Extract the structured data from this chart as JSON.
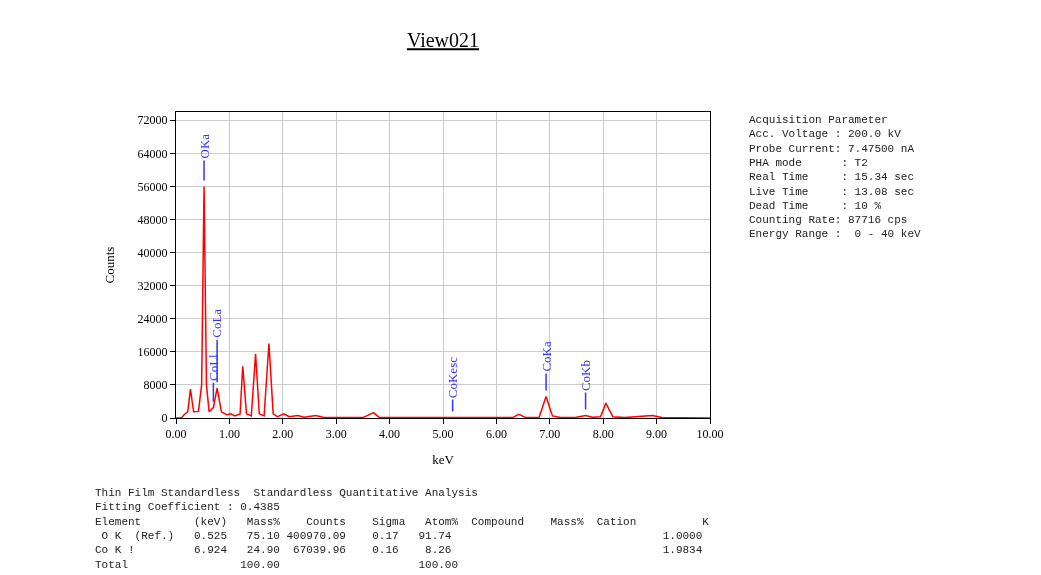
{
  "chart_data": {
    "type": "line",
    "title": "View021",
    "xlabel": "keV",
    "ylabel": "Counts",
    "x": [
      0,
      0.1,
      0.15,
      0.22,
      0.27,
      0.33,
      0.42,
      0.48,
      0.525,
      0.57,
      0.62,
      0.7,
      0.77,
      0.85,
      0.95,
      1.03,
      1.1,
      1.2,
      1.25,
      1.32,
      1.41,
      1.49,
      1.56,
      1.65,
      1.74,
      1.82,
      1.9,
      2.02,
      2.12,
      2.28,
      2.4,
      2.62,
      2.75,
      3.5,
      3.7,
      3.8,
      4.5,
      5.18,
      5.5,
      6.3,
      6.42,
      6.55,
      6.8,
      6.93,
      7.05,
      7.2,
      7.5,
      7.67,
      7.8,
      7.95,
      8.05,
      8.18,
      8.4,
      8.92,
      9.1,
      10
    ],
    "series": [
      {
        "color": "#ff0000",
        "values": [
          0,
          0,
          800,
          1500,
          7000,
          1500,
          1600,
          8000,
          56000,
          8000,
          1500,
          2500,
          7200,
          1500,
          800,
          1000,
          500,
          1000,
          12500,
          1000,
          500,
          15500,
          1000,
          500,
          18000,
          1000,
          300,
          1000,
          300,
          600,
          200,
          600,
          200,
          100,
          1300,
          200,
          100,
          100,
          100,
          100,
          900,
          100,
          200,
          5200,
          500,
          100,
          200,
          600,
          200,
          300,
          3600,
          300,
          100,
          600,
          100,
          0
        ]
      }
    ],
    "xlim": [
      0,
      10
    ],
    "ylim": [
      0,
      74000
    ],
    "xticks": [
      {
        "value": 0,
        "label": "0.00"
      },
      {
        "value": 1,
        "label": "1.00"
      },
      {
        "value": 2,
        "label": "2.00"
      },
      {
        "value": 3,
        "label": "3.00"
      },
      {
        "value": 4,
        "label": "4.00"
      },
      {
        "value": 5,
        "label": "5.00"
      },
      {
        "value": 6,
        "label": "6.00"
      },
      {
        "value": 7,
        "label": "7.00"
      },
      {
        "value": 8,
        "label": "8.00"
      },
      {
        "value": 9,
        "label": "9.00"
      },
      {
        "value": 10,
        "label": "10.00"
      }
    ],
    "yticks": [
      0,
      8000,
      16000,
      24000,
      32000,
      40000,
      48000,
      56000,
      64000,
      72000
    ],
    "grid": true,
    "marker": "none",
    "line_style": "solid",
    "annotations": [
      "Acquisition Parameter\nAcc. Voltage : 200.0 kV\nProbe Current: 7.47500 nA\nPHA mode      : T2\nReal Time     : 15.34 sec\nLive Time     : 13.08 sec\nDead Time     : 10 %\nCounting Rate: 87716 cps\nEnergy Range :  0 - 40 keV",
      "Thin Film Standardless  Standardless Quantitative Analysis\nFitting Coefficient : 0.4385\nElement        (keV)   Mass%    Counts    Sigma   Atom%  Compound    Mass%  Cation          K\n O K  (Ref.)   0.525   75.10 400970.09    0.17   91.74                                1.0000\nCo K !         6.924   24.90  67039.96    0.16    8.26                                1.9834\nTotal                 100.00                     100.00",
      {
        "text": "OKa",
        "x": 0.525,
        "y": 56000
      },
      {
        "text": "CoLl",
        "x": 0.7,
        "y": 2500
      },
      {
        "text": "CoLa",
        "x": 0.77,
        "y": 7200
      },
      {
        "text": "CoKesc",
        "x": 5.18,
        "y": 100
      },
      {
        "text": "CoKa",
        "x": 6.93,
        "y": 5200
      },
      {
        "text": "CoKb",
        "x": 7.67,
        "y": 600
      }
    ]
  }
}
